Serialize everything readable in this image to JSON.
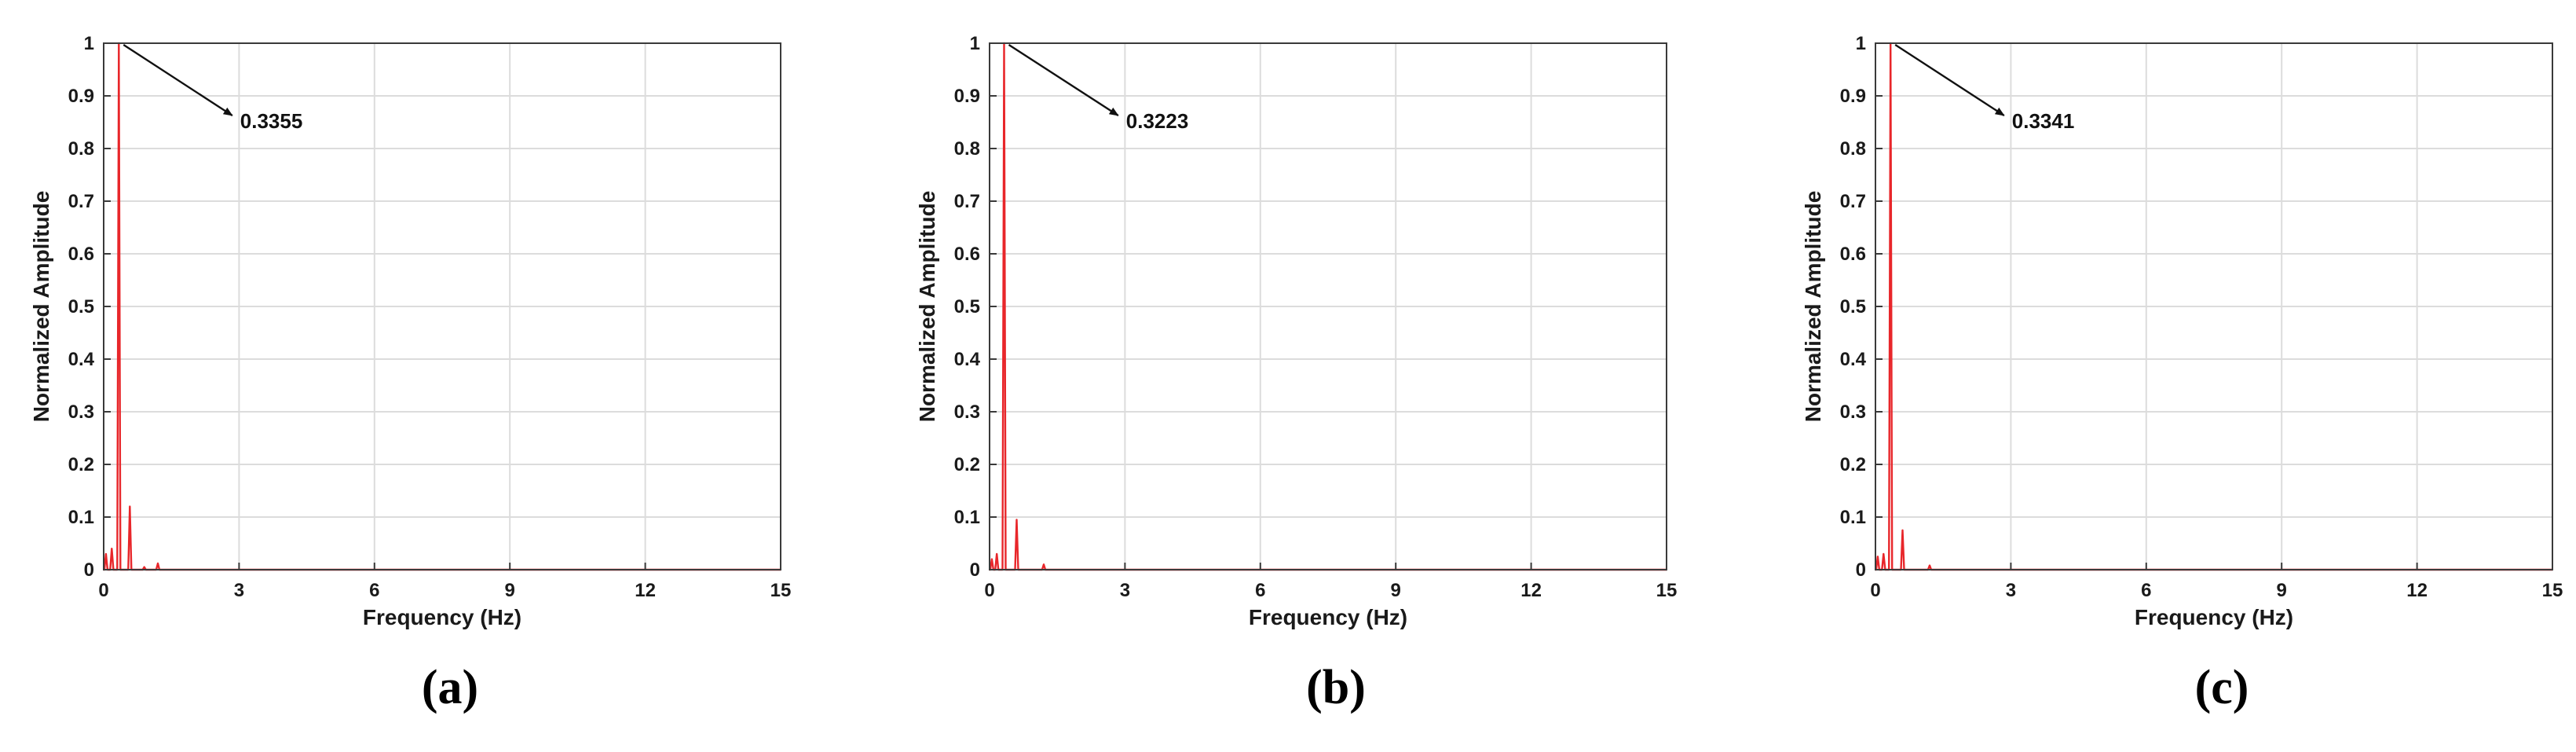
{
  "chart_data": [
    {
      "type": "line",
      "caption": "(a)",
      "xlabel": "Frequency (Hz)",
      "ylabel": "Normalized Amplitude",
      "xlim": [
        0,
        15
      ],
      "ylim": [
        0,
        1
      ],
      "xticks": [
        0,
        3,
        6,
        9,
        12,
        15
      ],
      "yticks": [
        0,
        0.1,
        0.2,
        0.3,
        0.4,
        0.5,
        0.6,
        0.7,
        0.8,
        0.9,
        1
      ],
      "grid": true,
      "color": "#e8262a",
      "peaks": [
        [
          0.05,
          0.03
        ],
        [
          0.18,
          0.04
        ],
        [
          0.3355,
          1.0
        ],
        [
          0.58,
          0.12
        ],
        [
          0.9,
          0.005
        ],
        [
          1.2,
          0.012
        ]
      ],
      "annotation": {
        "text": "0.3355",
        "x": 0.3355,
        "y": 1.0
      }
    },
    {
      "type": "line",
      "caption": "(b)",
      "xlabel": "Frequency (Hz)",
      "ylabel": "Normalized Amplitude",
      "xlim": [
        0,
        15
      ],
      "ylim": [
        0,
        1
      ],
      "xticks": [
        0,
        3,
        6,
        9,
        12,
        15
      ],
      "yticks": [
        0,
        0.1,
        0.2,
        0.3,
        0.4,
        0.5,
        0.6,
        0.7,
        0.8,
        0.9,
        1
      ],
      "grid": true,
      "color": "#e8262a",
      "peaks": [
        [
          0.05,
          0.02
        ],
        [
          0.16,
          0.03
        ],
        [
          0.3223,
          1.0
        ],
        [
          0.6,
          0.095
        ],
        [
          1.2,
          0.01
        ]
      ],
      "annotation": {
        "text": "0.3223",
        "x": 0.3223,
        "y": 1.0
      }
    },
    {
      "type": "line",
      "caption": "(c)",
      "xlabel": "Frequency (Hz)",
      "ylabel": "Normalized Amplitude",
      "xlim": [
        0,
        15
      ],
      "ylim": [
        0,
        1
      ],
      "xticks": [
        0,
        3,
        6,
        9,
        12,
        15
      ],
      "yticks": [
        0,
        0.1,
        0.2,
        0.3,
        0.4,
        0.5,
        0.6,
        0.7,
        0.8,
        0.9,
        1
      ],
      "grid": true,
      "color": "#e8262a",
      "peaks": [
        [
          0.05,
          0.025
        ],
        [
          0.18,
          0.03
        ],
        [
          0.3341,
          1.0
        ],
        [
          0.6,
          0.075
        ],
        [
          1.2,
          0.008
        ]
      ],
      "annotation": {
        "text": "0.3341",
        "x": 0.3341,
        "y": 1.0
      }
    }
  ]
}
